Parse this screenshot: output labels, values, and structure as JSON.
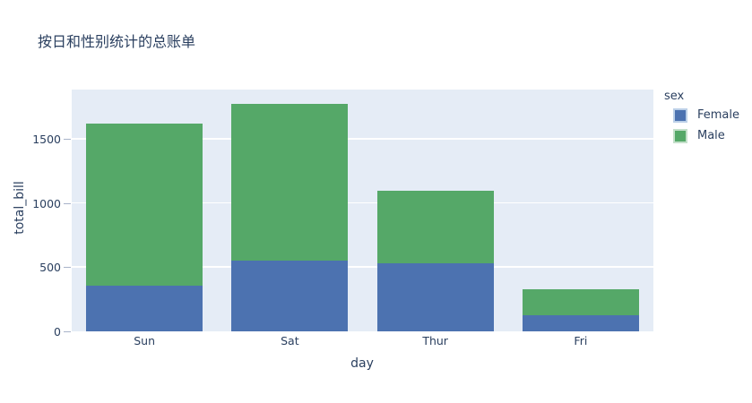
{
  "chart_data": {
    "type": "bar",
    "stacked": true,
    "title": "按日和性别统计的总账单",
    "xlabel": "day",
    "ylabel": "total_bill",
    "categories": [
      "Sun",
      "Sat",
      "Thur",
      "Fri"
    ],
    "series": [
      {
        "name": "Female",
        "color": "#4c72b0",
        "swatch_border": "#bcd0e8",
        "values": [
          357.7,
          551.05,
          534.89,
          127.31
        ]
      },
      {
        "name": "Male",
        "color": "#55a868",
        "swatch_border": "#c4e0ca",
        "values": [
          1269.46,
          1227.35,
          561.44,
          198.57
        ]
      }
    ],
    "totals": [
      1627.16,
      1778.4,
      1096.33,
      325.88
    ],
    "ylim": [
      0,
      1890
    ],
    "yticks": [
      0,
      500,
      1000,
      1500
    ],
    "grid": true,
    "gridcolor": "#ffffff",
    "plot_bgcolor": "#e5ecf6",
    "text_color": "#2a3f5f",
    "legend_title": "sex",
    "legend_position": "right",
    "bar_texture": "many thin per-record segments separated by light stripes"
  }
}
